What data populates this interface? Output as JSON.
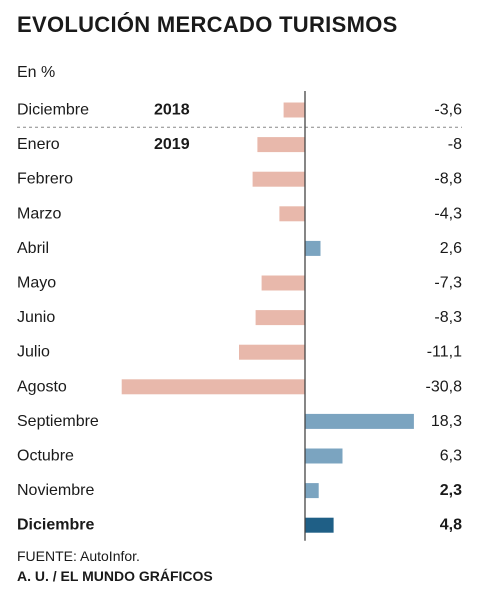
{
  "title": "EVOLUCIÓN MERCADO TURISMOS",
  "unit_label": "En %",
  "source": "FUENTE: AutoInfor.",
  "credit": "A. U. / EL MUNDO GRÁFICOS",
  "colors": {
    "negative": "#e8b8ab",
    "positive": "#7ba4c0",
    "highlight": "#1f5f86",
    "axis": "#444444",
    "text": "#1a1a1a"
  },
  "chart_data": {
    "type": "bar",
    "orientation": "horizontal",
    "unit": "En %",
    "categories": [
      "Diciembre",
      "Enero",
      "Febrero",
      "Marzo",
      "Abril",
      "Mayo",
      "Junio",
      "Julio",
      "Agosto",
      "Septiembre",
      "Octubre",
      "Noviembre",
      "Diciembre"
    ],
    "value_labels": [
      "-3,6",
      "-8",
      "-8,8",
      "-4,3",
      "2,6",
      "-7,3",
      "-8,3",
      "-11,1",
      "-30,8",
      "18,3",
      "6,3",
      "2,3",
      "4,8"
    ],
    "values": [
      -3.6,
      -8,
      -8.8,
      -4.3,
      2.6,
      -7.3,
      -8.3,
      -11.1,
      -30.8,
      18.3,
      6.3,
      2.3,
      4.8
    ],
    "year_labels": [
      {
        "row": 0,
        "text": "2018"
      },
      {
        "row": 1,
        "text": "2019"
      }
    ],
    "bold_value_rows": [
      11,
      12
    ],
    "bold_label_rows": [
      12
    ],
    "highlight_row": 12,
    "separator_after_row": 0
  }
}
